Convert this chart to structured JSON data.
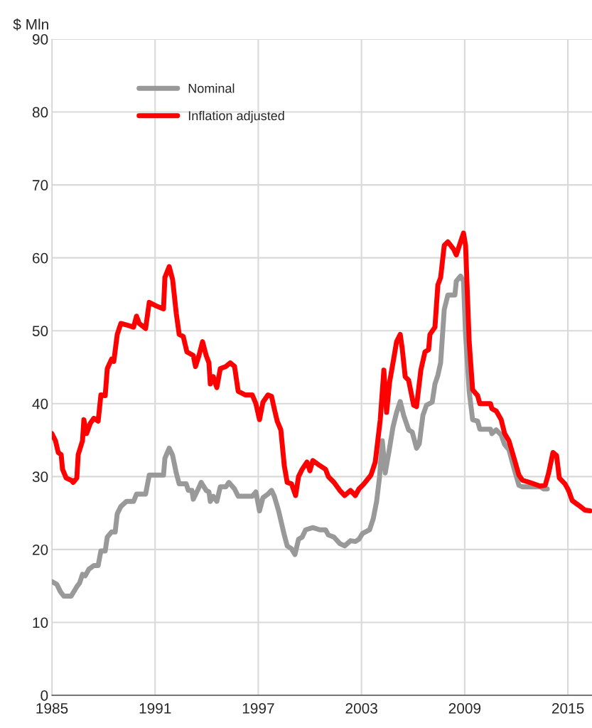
{
  "chart_data": {
    "type": "line",
    "ylabel": "$ Mln",
    "xlim": [
      1985,
      2016.4
    ],
    "xticks": [
      1985,
      1991,
      1997,
      2003,
      2009,
      2015
    ],
    "ylim": [
      0,
      90
    ],
    "yticks": [
      0,
      10,
      20,
      30,
      40,
      50,
      60,
      70,
      80,
      90
    ],
    "grid": true,
    "legend": "top left",
    "marker": "none",
    "line_style": "solid",
    "series": [
      {
        "name": "Nominal",
        "color": "#999999",
        "x": [
          1985.0,
          1985.29,
          1985.5,
          1985.7,
          1986.12,
          1986.45,
          1986.61,
          1986.78,
          1986.94,
          1987.15,
          1987.44,
          1987.69,
          1987.85,
          1988.1,
          1988.22,
          1988.47,
          1988.68,
          1988.8,
          1989.01,
          1989.34,
          1989.75,
          1989.92,
          1990.45,
          1990.66,
          1991.49,
          1991.57,
          1991.82,
          1992.02,
          1992.23,
          1992.4,
          1992.81,
          1992.93,
          1993.14,
          1993.22,
          1993.47,
          1993.68,
          1993.97,
          1994.13,
          1994.21,
          1994.38,
          1994.59,
          1994.79,
          1995.12,
          1995.29,
          1995.62,
          1995.83,
          1996.65,
          1996.86,
          1997.07,
          1997.27,
          1997.56,
          1997.77,
          1997.93,
          1998.18,
          1998.51,
          1998.68,
          1998.93,
          1999.13,
          1999.34,
          1999.55,
          1999.75,
          2000.17,
          2000.58,
          2000.91,
          2001.07,
          2001.4,
          2001.74,
          2002.02,
          2002.36,
          2002.64,
          2002.85,
          2003.06,
          2003.47,
          2003.68,
          2003.88,
          2004.05,
          2004.21,
          2004.38,
          2004.63,
          2004.83,
          2005.04,
          2005.25,
          2005.45,
          2005.74,
          2005.95,
          2006.2,
          2006.36,
          2006.57,
          2006.78,
          2007.11,
          2007.27,
          2007.44,
          2007.6,
          2007.81,
          2008.02,
          2008.43,
          2008.51,
          2008.76,
          2008.93,
          2009.05,
          2009.26,
          2009.46,
          2009.75,
          2009.88,
          2010.5,
          2010.58,
          2010.83,
          2011.12,
          2011.32,
          2011.57,
          2011.82,
          2012.15,
          2012.36,
          2013.39,
          2013.6,
          2013.8
        ],
        "values": [
          15.6,
          15.2,
          14.2,
          13.6,
          13.6,
          14.9,
          15.4,
          16.6,
          16.4,
          17.3,
          17.8,
          17.8,
          19.8,
          19.8,
          21.7,
          22.4,
          22.4,
          24.9,
          25.9,
          26.6,
          26.6,
          27.6,
          27.6,
          30.2,
          30.2,
          32.5,
          33.9,
          32.9,
          30.5,
          29,
          29,
          28.1,
          28.1,
          26.9,
          28.1,
          29.2,
          28.1,
          27.9,
          26.6,
          27.3,
          26.6,
          28.6,
          28.6,
          29.2,
          28.3,
          27.3,
          27.3,
          27.9,
          25.3,
          27.1,
          27.6,
          28.1,
          27.3,
          25.3,
          22,
          20.5,
          20.1,
          19.3,
          21.4,
          21.7,
          22.7,
          23,
          22.7,
          22.7,
          22,
          21.7,
          20.8,
          20.5,
          21.2,
          21.1,
          21.4,
          22.2,
          22.7,
          24.2,
          26.6,
          30,
          34.9,
          30.5,
          33.9,
          36.8,
          38.8,
          40.3,
          38.4,
          36.4,
          36.1,
          33.9,
          34.5,
          38.4,
          39.8,
          40.2,
          42.7,
          43.9,
          45.6,
          52.9,
          54.9,
          54.9,
          56.8,
          57.5,
          56.8,
          49.5,
          41.7,
          37.8,
          37.6,
          36.5,
          36.5,
          35.9,
          36.4,
          35.7,
          34.4,
          33.7,
          31.5,
          28.8,
          28.6,
          28.6,
          28.3,
          28.3
        ]
      },
      {
        "name": "Inflation adjusted",
        "color": "#ff0000",
        "x": [
          1985.0,
          1985.21,
          1985.37,
          1985.54,
          1985.62,
          1985.83,
          1986.12,
          1986.24,
          1986.45,
          1986.53,
          1986.78,
          1986.86,
          1987.02,
          1987.23,
          1987.44,
          1987.69,
          1987.85,
          1988.1,
          1988.22,
          1988.47,
          1988.6,
          1988.8,
          1989.01,
          1989.34,
          1989.75,
          1989.92,
          1990.08,
          1990.45,
          1990.66,
          1991.07,
          1991.49,
          1991.57,
          1991.82,
          1992.02,
          1992.23,
          1992.4,
          1992.64,
          1992.85,
          1993.22,
          1993.35,
          1993.55,
          1993.76,
          1993.97,
          1994.13,
          1994.21,
          1994.38,
          1994.59,
          1994.79,
          1995.12,
          1995.37,
          1995.62,
          1995.83,
          1996.24,
          1996.65,
          1996.86,
          1997.07,
          1997.27,
          1997.56,
          1997.77,
          1997.93,
          1998.1,
          1998.31,
          1998.51,
          1998.68,
          1998.93,
          1999.17,
          1999.34,
          1999.55,
          1999.83,
          2000.0,
          2000.17,
          2000.58,
          2000.91,
          2001.07,
          2001.4,
          2001.74,
          2002.02,
          2002.36,
          2002.64,
          2002.85,
          2003.14,
          2003.55,
          2003.8,
          2004.09,
          2004.3,
          2004.46,
          2004.63,
          2004.83,
          2005.04,
          2005.25,
          2005.37,
          2005.54,
          2005.74,
          2006.03,
          2006.2,
          2006.45,
          2006.69,
          2006.9,
          2006.98,
          2007.27,
          2007.44,
          2007.6,
          2007.81,
          2008.02,
          2008.35,
          2008.51,
          2008.76,
          2008.93,
          2009.05,
          2009.26,
          2009.46,
          2009.75,
          2009.88,
          2010.5,
          2010.58,
          2010.83,
          2011.12,
          2011.32,
          2011.57,
          2011.82,
          2012.15,
          2012.36,
          2012.77,
          2013.39,
          2013.68,
          2013.88,
          2014.13,
          2014.34,
          2014.5,
          2014.83,
          2015.04,
          2015.25,
          2015.66,
          2015.99,
          2016.28
        ],
        "values": [
          35.9,
          34.9,
          33.3,
          33,
          31,
          29.8,
          29.5,
          29.2,
          29.8,
          33,
          34.9,
          37.8,
          35.9,
          37.3,
          38,
          37.6,
          41.2,
          41.1,
          44.8,
          46.1,
          45.8,
          49.5,
          51,
          50.8,
          50.5,
          52,
          51,
          50.3,
          53.9,
          53.4,
          53,
          57.3,
          58.8,
          57,
          52.4,
          49.5,
          49.2,
          47.1,
          46.6,
          45.1,
          46.6,
          48.5,
          46.6,
          45.6,
          42.7,
          43.7,
          42.2,
          44.8,
          45.1,
          45.6,
          45.1,
          41.7,
          41.2,
          41.2,
          40,
          37.8,
          40.2,
          41.2,
          41,
          39.3,
          37.6,
          36.4,
          31.5,
          29.2,
          29,
          27.4,
          30,
          31,
          32,
          30.8,
          32.2,
          31.5,
          31,
          30,
          29.2,
          28.1,
          27.4,
          28.1,
          27.4,
          28.3,
          29,
          30.2,
          32,
          37.8,
          44.6,
          38.8,
          42.9,
          45.6,
          48.5,
          49.5,
          47.5,
          43.7,
          43.2,
          39.8,
          39.6,
          44.6,
          47.1,
          47.4,
          49.5,
          50.5,
          56.3,
          57.3,
          61.7,
          62.2,
          61.2,
          60.4,
          62.2,
          63.4,
          61.7,
          48.5,
          41.9,
          41.1,
          40,
          40,
          39.3,
          39,
          37.8,
          35.9,
          34.9,
          32.9,
          30.2,
          29.5,
          29.2,
          28.7,
          28.8,
          30.5,
          33.3,
          32.9,
          29.8,
          29,
          28.1,
          26.7,
          26,
          25.4,
          25.3
        ]
      }
    ]
  }
}
